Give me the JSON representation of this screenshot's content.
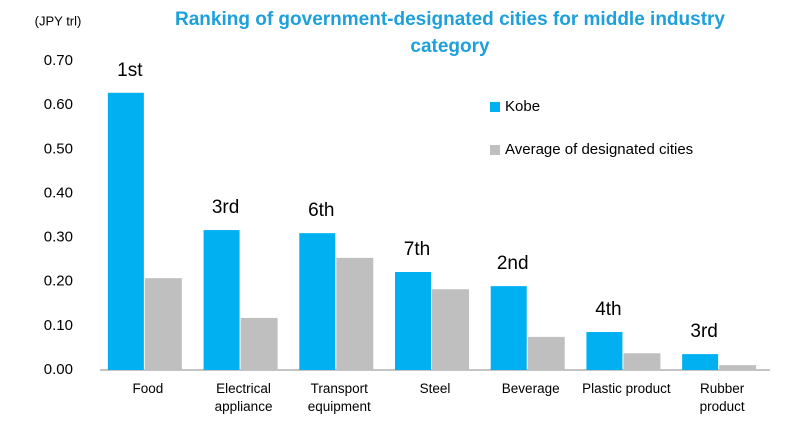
{
  "chart_data": {
    "type": "bar",
    "title": "Ranking of government-designated cities for middle industry category",
    "y_unit": "(JPY trl)",
    "categories": [
      "Food",
      "Electrical appliance",
      "Transport equipment",
      "Steel",
      "Beverage",
      "Plastic product",
      "Rubber product"
    ],
    "series": [
      {
        "name": "Kobe",
        "color": "#00b0f0",
        "values": [
          0.628,
          0.317,
          0.31,
          0.222,
          0.19,
          0.086,
          0.036
        ]
      },
      {
        "name": "Average of designated cities",
        "color": "#bfbfbf",
        "values": [
          0.208,
          0.118,
          0.254,
          0.183,
          0.075,
          0.038,
          0.011
        ]
      }
    ],
    "rank_labels": [
      "1st",
      "3rd",
      "6th",
      "7th",
      "2nd",
      "4th",
      "3rd"
    ],
    "ylim": [
      0,
      0.7
    ],
    "yticks": [
      {
        "value": 0,
        "label": "0.00"
      },
      {
        "value": 0.1,
        "label": "0.10"
      },
      {
        "value": 0.2,
        "label": "0.20"
      },
      {
        "value": 0.3,
        "label": "0.30"
      },
      {
        "value": 0.4,
        "label": "0.40"
      },
      {
        "value": 0.5,
        "label": "0.50"
      },
      {
        "value": 0.6,
        "label": "0.60"
      },
      {
        "value": 0.7,
        "label": "0.70"
      }
    ],
    "grid": false,
    "legend": "right"
  }
}
